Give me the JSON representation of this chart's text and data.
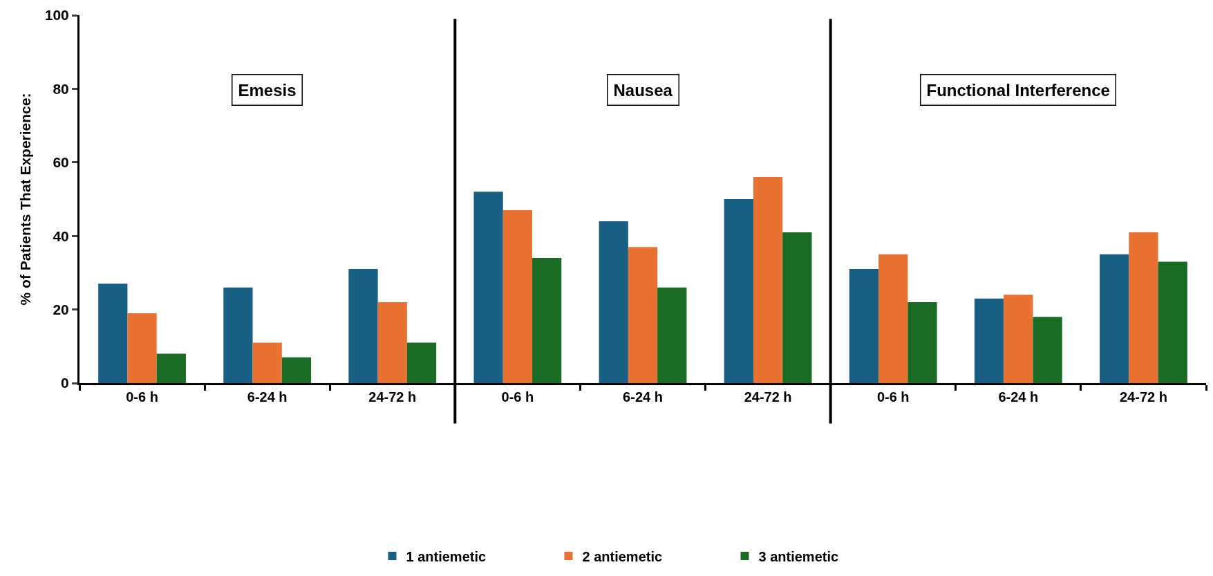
{
  "chart_data": {
    "type": "bar",
    "ylabel": "% of Patients That Experience:",
    "categories": [
      "0-6 h",
      "6-24 h",
      "24-72 h",
      "0-6 h",
      "6-24 h",
      "24-72 h",
      "0-6 h",
      "6-24 h",
      "24-72 h"
    ],
    "series": [
      {
        "name": "1 antiemetic",
        "color": "#175f83",
        "values": [
          27,
          26,
          31,
          52,
          44,
          50,
          31,
          23,
          35
        ]
      },
      {
        "name": "2 antiemetic",
        "color": "#e97132",
        "values": [
          19,
          11,
          22,
          47,
          37,
          56,
          35,
          24,
          41
        ]
      },
      {
        "name": "3 antiemetic",
        "color": "#1a6b24",
        "values": [
          8,
          7,
          11,
          34,
          26,
          41,
          22,
          18,
          33
        ]
      }
    ],
    "annotations": [
      "Emesis",
      "Nausea",
      "Functional Interference"
    ],
    "ylim": [
      0,
      100
    ],
    "yticks": [
      0,
      20,
      40,
      60,
      80,
      100
    ],
    "legend": "bottom"
  }
}
